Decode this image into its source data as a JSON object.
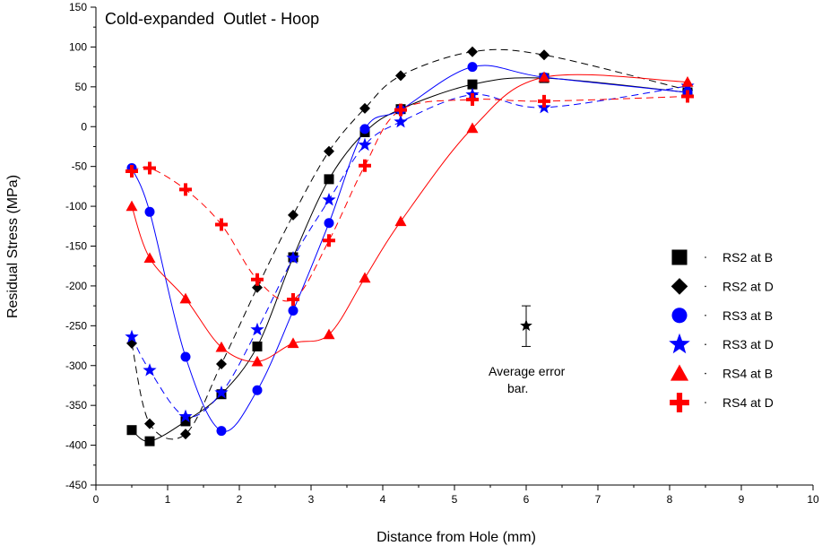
{
  "chart_data": {
    "type": "scatter",
    "title": "Cold-expanded  Outlet - Hoop",
    "xlabel": "Distance from Hole (mm)",
    "ylabel": "Residual Stress (MPa)",
    "xlim": [
      0,
      10
    ],
    "ylim": [
      -450,
      150
    ],
    "xticks": [
      0,
      1,
      2,
      3,
      4,
      5,
      6,
      7,
      8,
      9,
      10
    ],
    "yticks": [
      150,
      100,
      50,
      0,
      -50,
      -100,
      -150,
      -200,
      -250,
      -300,
      -350,
      -400,
      -450
    ],
    "grid": false,
    "legend_position": "right",
    "series": [
      {
        "name": "RS2 at B",
        "color": "#000000",
        "marker": "square",
        "line": "solid",
        "x": [
          0.5,
          0.75,
          1.25,
          1.75,
          2.25,
          2.75,
          3.25,
          3.75,
          4.25,
          5.25,
          6.25,
          8.25
        ],
        "y": [
          -381,
          -395,
          -370,
          -336,
          -276,
          -164,
          -66,
          -7,
          22,
          53,
          61,
          43
        ]
      },
      {
        "name": "RS2 at D",
        "color": "#000000",
        "marker": "diamond",
        "line": "dashed",
        "x": [
          0.5,
          0.75,
          1.25,
          1.75,
          2.25,
          2.75,
          3.25,
          3.75,
          4.25,
          5.25,
          6.25,
          8.25
        ],
        "y": [
          -272,
          -373,
          -386,
          -298,
          -202,
          -111,
          -31,
          23,
          64,
          94,
          90,
          46
        ]
      },
      {
        "name": "RS3 at B",
        "color": "#0000ff",
        "marker": "circle",
        "line": "solid",
        "x": [
          0.5,
          0.75,
          1.25,
          1.75,
          2.25,
          2.75,
          3.25,
          3.75,
          4.25,
          5.25,
          6.25,
          8.25
        ],
        "y": [
          -52,
          -107,
          -289,
          -382,
          -331,
          -231,
          -121,
          -3,
          21,
          75,
          62,
          43
        ]
      },
      {
        "name": "RS3 at D",
        "color": "#0000ff",
        "marker": "star",
        "line": "dashed",
        "x": [
          0.5,
          0.75,
          1.25,
          1.75,
          2.25,
          2.75,
          3.25,
          3.75,
          4.25,
          5.25,
          6.25,
          8.25
        ],
        "y": [
          -264,
          -306,
          -364,
          -334,
          -255,
          -165,
          -92,
          -23,
          6,
          40,
          24,
          51
        ]
      },
      {
        "name": "RS4 at B",
        "color": "#ff0000",
        "marker": "triangle",
        "line": "solid",
        "x": [
          0.5,
          0.75,
          1.25,
          1.75,
          2.25,
          2.75,
          3.25,
          3.75,
          4.25,
          5.25,
          6.25,
          8.25
        ],
        "y": [
          -100,
          -165,
          -216,
          -277,
          -295,
          -272,
          -261,
          -190,
          -119,
          -2,
          62,
          56
        ]
      },
      {
        "name": "RS4 at D",
        "color": "#ff0000",
        "marker": "plus",
        "line": "dashed",
        "x": [
          0.5,
          0.75,
          1.25,
          1.75,
          2.25,
          2.75,
          3.25,
          3.75,
          4.25,
          5.25,
          6.25,
          8.25
        ],
        "y": [
          -56,
          -52,
          -79,
          -123,
          -192,
          -217,
          -143,
          -49,
          21,
          34,
          32,
          38
        ]
      }
    ],
    "error_bar": {
      "x": 6.0,
      "y": -250,
      "low": -276,
      "high": -225,
      "marker": "star",
      "color": "#000000",
      "label_line1": "Average error",
      "label_line2": "bar."
    }
  }
}
